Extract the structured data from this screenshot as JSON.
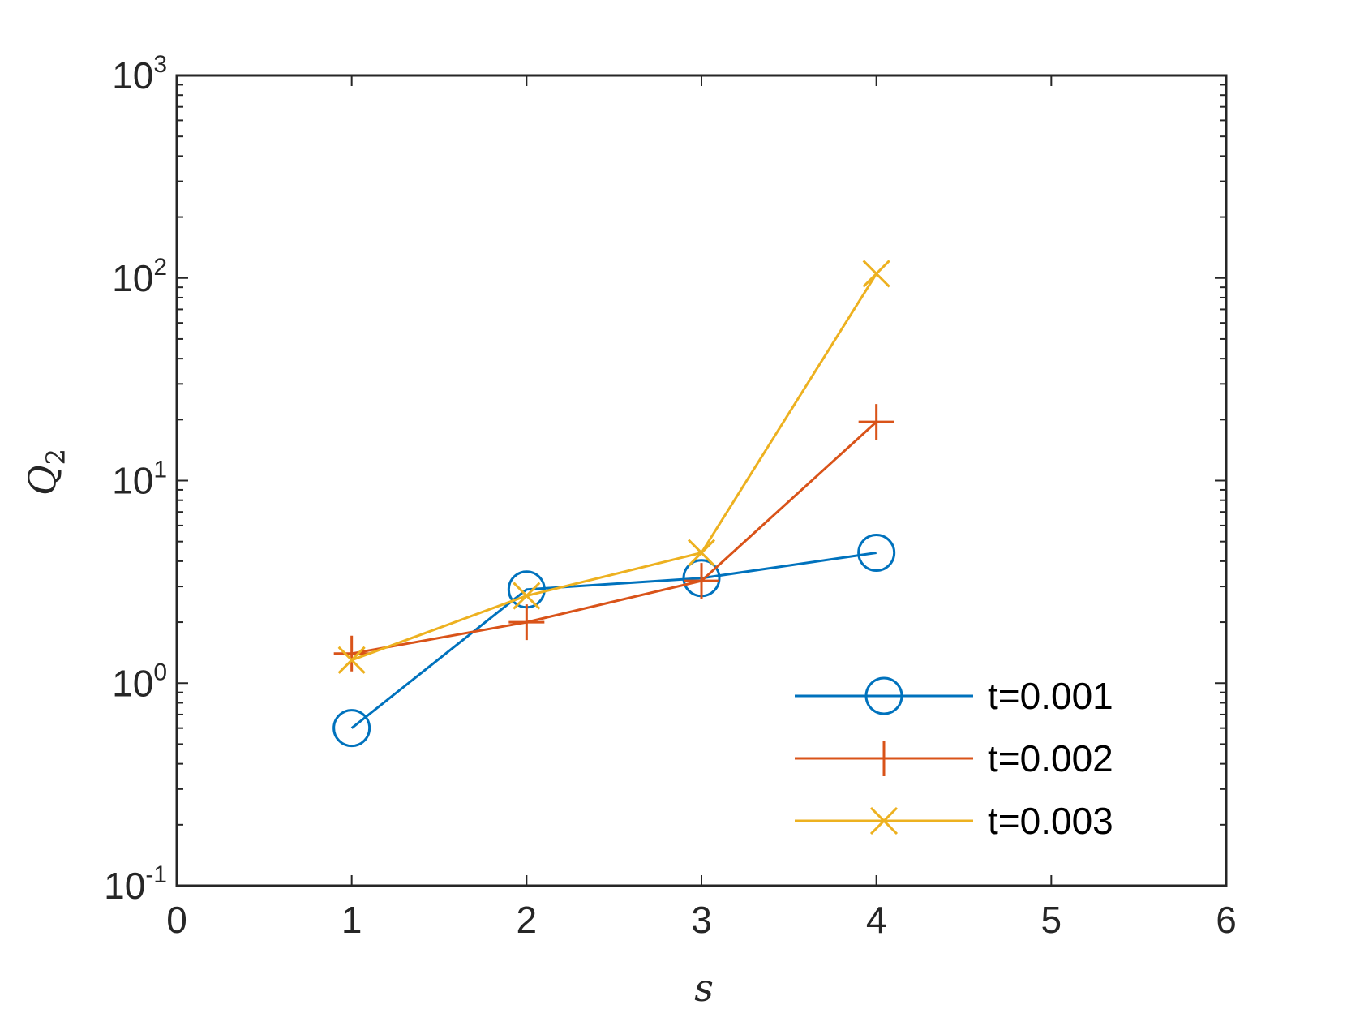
{
  "chart_data": {
    "type": "line",
    "xlabel": "s",
    "ylabel": {
      "base": "Q",
      "sub": "2"
    },
    "xlim": [
      0,
      6
    ],
    "ylim": [
      0.1,
      1000
    ],
    "yscale": "log",
    "xticks": [
      "0",
      "1",
      "2",
      "3",
      "4",
      "5",
      "6"
    ],
    "yticks": [
      {
        "base": "10",
        "exp": "-1"
      },
      {
        "base": "10",
        "exp": "0"
      },
      {
        "base": "10",
        "exp": "1"
      },
      {
        "base": "10",
        "exp": "2"
      },
      {
        "base": "10",
        "exp": "3"
      }
    ],
    "grid": false,
    "legend_position": "bottom-right",
    "series": [
      {
        "name": "t=0.001",
        "color": "#0072BD",
        "marker": "circle",
        "x": [
          1,
          2,
          3,
          4
        ],
        "y": [
          0.6,
          2.9,
          3.3,
          4.4
        ]
      },
      {
        "name": "t=0.002",
        "color": "#D95319",
        "marker": "plus",
        "x": [
          1,
          2,
          3,
          4
        ],
        "y": [
          1.4,
          2.0,
          3.2,
          19.5
        ]
      },
      {
        "name": "t=0.003",
        "color": "#EDB120",
        "marker": "cross",
        "x": [
          1,
          2,
          3,
          4
        ],
        "y": [
          1.3,
          2.7,
          4.4,
          105
        ]
      }
    ]
  }
}
